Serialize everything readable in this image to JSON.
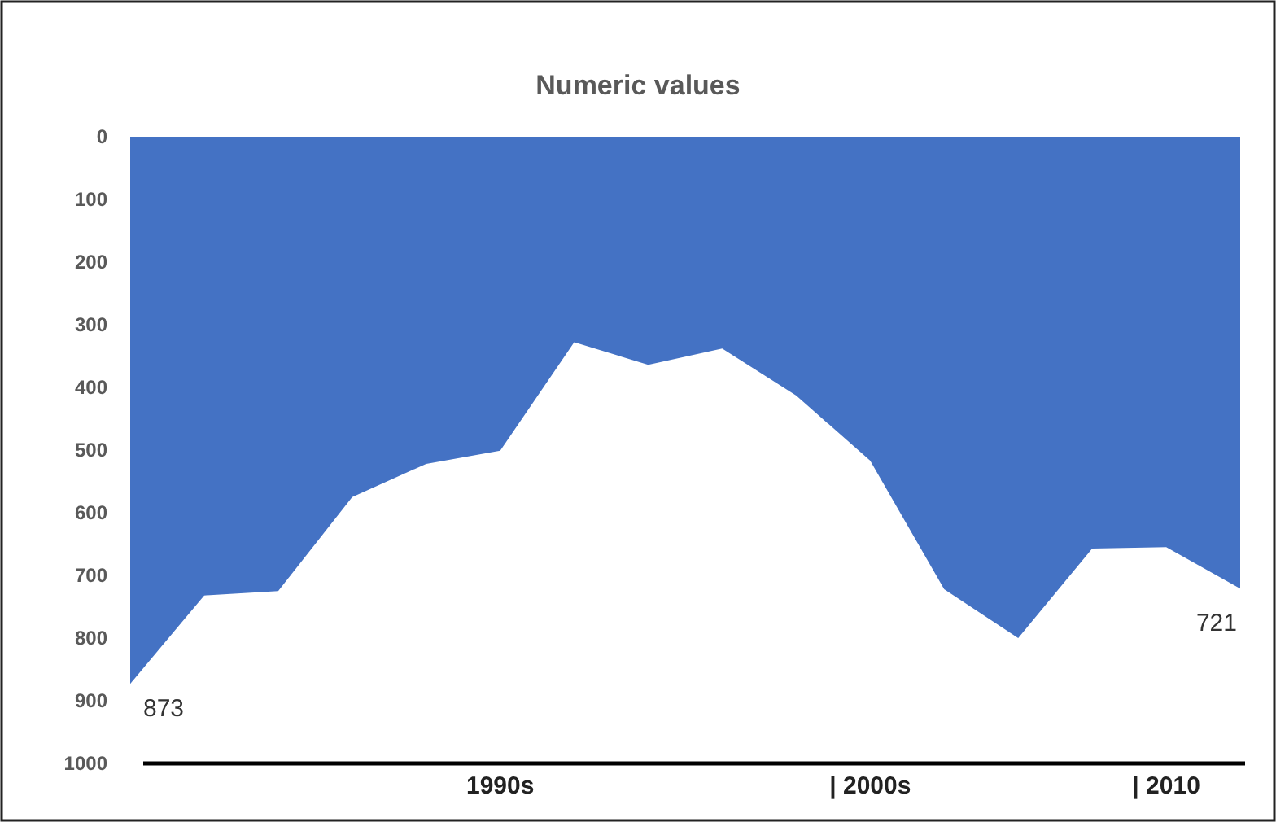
{
  "chart_data": {
    "type": "area",
    "title": "Numeric values",
    "categories": [
      null,
      null,
      null,
      null,
      null,
      "1990s",
      null,
      null,
      null,
      null,
      "| 2000s",
      null,
      null,
      null,
      "| 2010",
      null
    ],
    "series": [
      {
        "color": "#4472c4",
        "values": [
          873,
          732,
          725,
          575,
          522,
          501,
          328,
          364,
          338,
          413,
          517,
          722,
          800,
          657,
          655,
          721
        ]
      }
    ],
    "value_labels": [
      "873",
      null,
      null,
      null,
      null,
      null,
      null,
      null,
      null,
      null,
      null,
      null,
      null,
      null,
      null,
      "721"
    ],
    "ylim": [
      1000,
      0
    ],
    "yticks": [
      0,
      100,
      200,
      300,
      400,
      500,
      600,
      700,
      800,
      900,
      1000
    ],
    "grid": false
  }
}
